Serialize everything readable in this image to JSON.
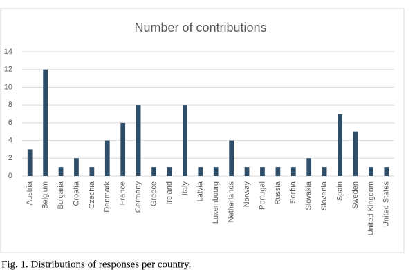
{
  "chart_data": {
    "type": "bar",
    "title": "Number of contributions",
    "categories": [
      "Austria",
      "Belgium",
      "Bulgaria",
      "Croatia",
      "Czechia",
      "Denmark",
      "France",
      "Germany",
      "Greece",
      "Ireland",
      "Italy",
      "Latvia",
      "Luxembourg",
      "Netherlands",
      "Norway",
      "Portugal",
      "Russia",
      "Serbia",
      "Slovakia",
      "Slovenia",
      "Spain",
      "Sweden",
      "United Kingdom",
      "United States"
    ],
    "values": [
      3,
      12,
      1,
      2,
      1,
      4,
      6,
      8,
      1,
      1,
      8,
      1,
      1,
      4,
      1,
      1,
      1,
      1,
      2,
      1,
      7,
      5,
      1,
      1
    ],
    "color": "#2e4d69",
    "ylim": [
      0,
      14
    ],
    "yticks": [
      0,
      2,
      4,
      6,
      8,
      10,
      12,
      14
    ],
    "grid": true,
    "caption": "Fig. 1. Distributions of responses per country."
  }
}
